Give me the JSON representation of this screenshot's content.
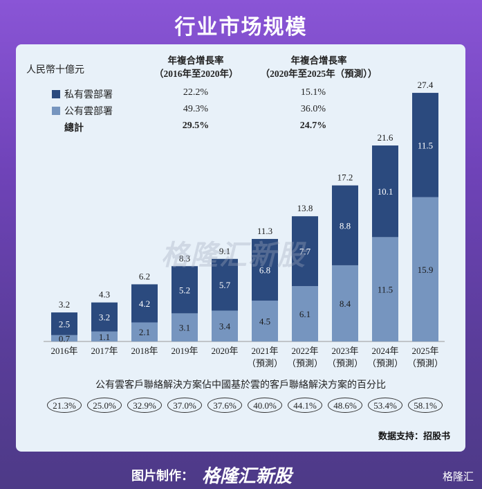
{
  "page_title": "行业市场规模",
  "source_label": "数据支持：招股书",
  "footer": {
    "made_by": "图片制作：",
    "brand": "格隆汇新股",
    "corner": "格隆汇"
  },
  "watermark": "格隆汇新股",
  "colors": {
    "private": "#2b4a7e",
    "public": "#7695bf",
    "panel": "#e8f1f9"
  },
  "table": {
    "unit": "人民幣十億元",
    "col1_header": [
      "年複合增長率",
      "（2016年至2020年）"
    ],
    "col2_header": [
      "年複合增長率",
      "（2020年至2025年（預測））"
    ],
    "rows": [
      {
        "label": "私有雲部署",
        "v1": "22.2%",
        "v2": "15.1%",
        "swatch": "private"
      },
      {
        "label": "公有雲部署",
        "v1": "49.3%",
        "v2": "36.0%",
        "swatch": "public"
      },
      {
        "label": "總計",
        "v1": "29.5%",
        "v2": "24.7%",
        "swatch": ""
      }
    ]
  },
  "chart_data": {
    "type": "bar",
    "stacked": true,
    "categories": [
      "2016年",
      "2017年",
      "2018年",
      "2019年",
      "2020年",
      "2021年\n（預測）",
      "2022年\n（預測）",
      "2023年\n（預測）",
      "2024年\n（預測）",
      "2025年\n（預測）"
    ],
    "series": [
      {
        "name": "公有雲部署",
        "values": [
          0.7,
          1.1,
          2.1,
          3.1,
          3.4,
          4.5,
          6.1,
          8.4,
          11.5,
          15.9
        ]
      },
      {
        "name": "私有雲部署",
        "values": [
          2.5,
          3.2,
          4.2,
          5.2,
          5.7,
          6.8,
          7.7,
          8.8,
          10.1,
          11.5
        ]
      }
    ],
    "totals": [
      3.2,
      4.3,
      6.2,
      8.3,
      9.1,
      11.3,
      13.8,
      17.2,
      21.6,
      27.4
    ],
    "ylabel": "人民幣十億元",
    "ylim": [
      0,
      27.4
    ]
  },
  "public_share": {
    "label": "公有雲客戶聯絡解決方案佔中國基於雲的客戶聯絡解決方案的百分比",
    "values": [
      "21.3%",
      "25.0%",
      "32.9%",
      "37.0%",
      "37.6%",
      "40.0%",
      "44.1%",
      "48.6%",
      "53.4%",
      "58.1%"
    ]
  }
}
